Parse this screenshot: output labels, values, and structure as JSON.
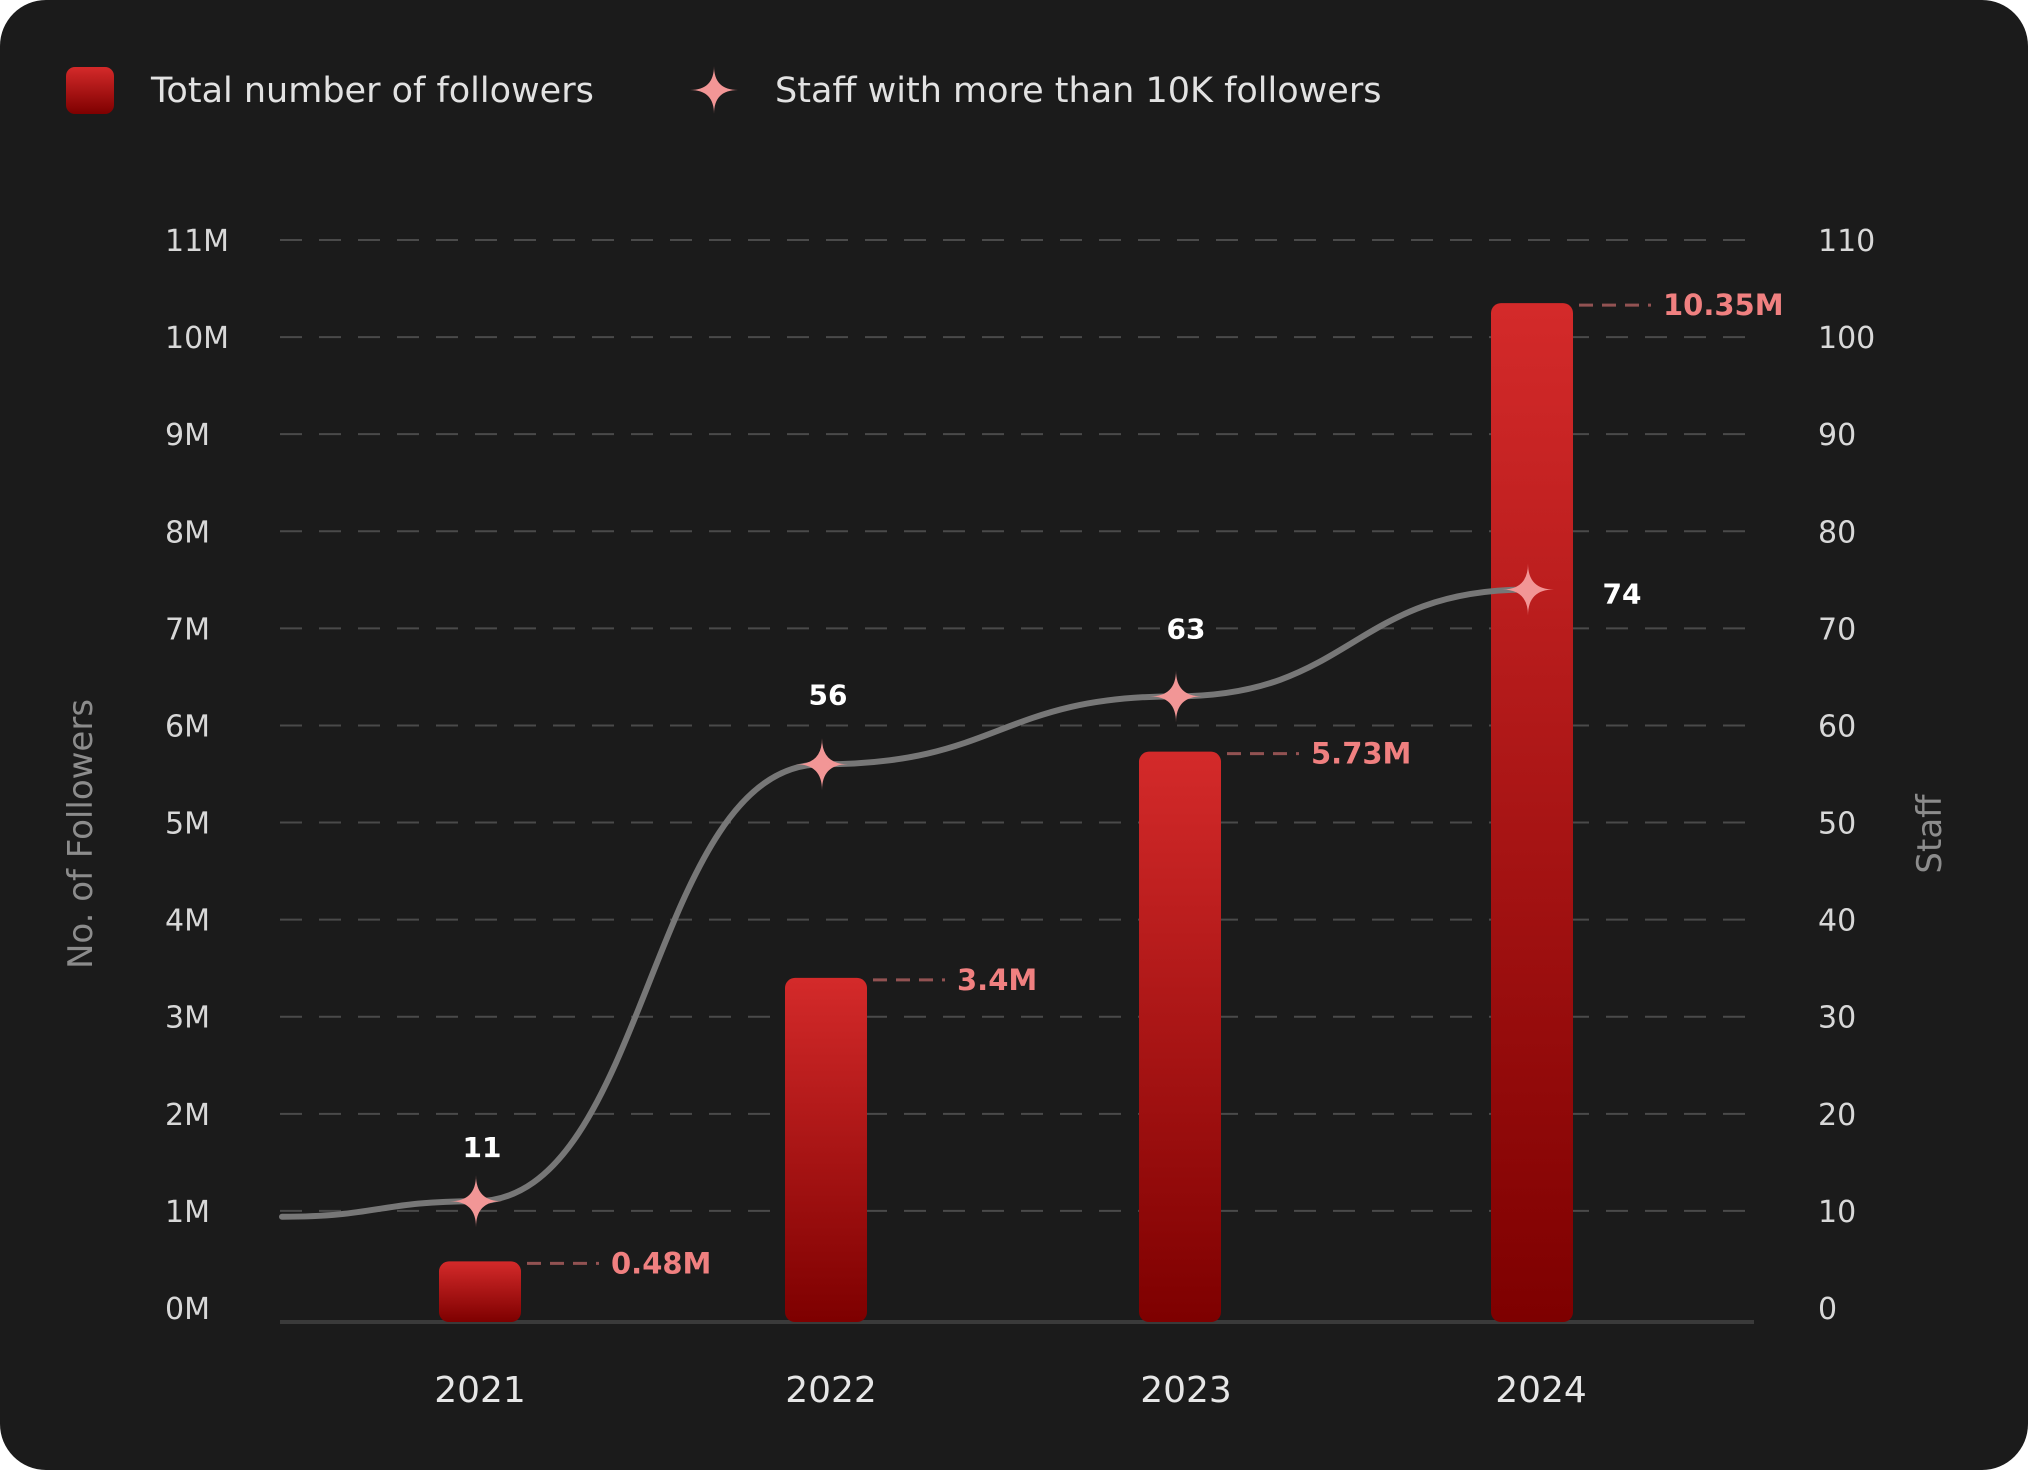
{
  "chart_data": {
    "type": "bar",
    "categories": [
      "2021",
      "2022",
      "2023",
      "2024"
    ],
    "series": [
      {
        "name": "Total number of followers",
        "type": "bar",
        "axis": "left",
        "values": [
          0.48,
          3.4,
          5.73,
          10.35
        ],
        "labels": [
          "0.48M",
          "3.4M",
          "5.73M",
          "10.35M"
        ]
      },
      {
        "name": "Staff with more than 10K followers",
        "type": "line",
        "axis": "right",
        "values": [
          11,
          56,
          63,
          74
        ],
        "labels": [
          "11",
          "56",
          "63",
          "74"
        ]
      }
    ],
    "ylabel": "No. of Followers",
    "y2label": "Staff",
    "ylim": [
      0,
      11
    ],
    "y2lim": [
      0,
      110
    ],
    "yticks": [
      "0M",
      "1M",
      "2M",
      "3M",
      "4M",
      "5M",
      "6M",
      "7M",
      "8M",
      "9M",
      "10M",
      "11M"
    ],
    "y2ticks": [
      "0",
      "10",
      "20",
      "30",
      "40",
      "50",
      "60",
      "70",
      "80",
      "90",
      "100",
      "110"
    ],
    "grid": true,
    "legend_position": "top-left"
  },
  "colors": {
    "background": "#1b1b1b",
    "bar_top": "#d42a2a",
    "bar_bottom": "#7e0000",
    "line": "#777777",
    "marker": "#f29696",
    "bar_label": "#f08080",
    "grid": "#4a4a4a"
  }
}
